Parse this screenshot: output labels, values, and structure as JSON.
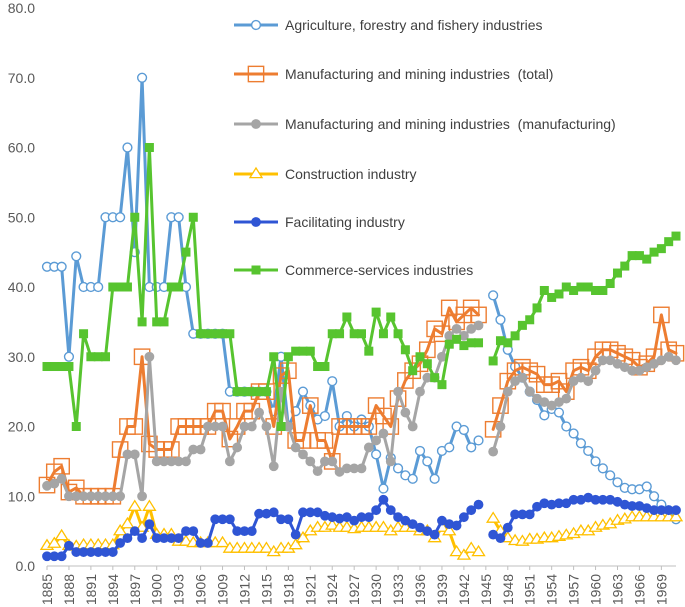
{
  "chart_data": {
    "type": "line",
    "title": "",
    "xlabel": "",
    "ylabel": "",
    "ylim": [
      0,
      80
    ],
    "yticks": [
      "0.0",
      "10.0",
      "20.0",
      "30.0",
      "40.0",
      "50.0",
      "60.0",
      "70.0",
      "80.0"
    ],
    "xlim": [
      1885,
      1971
    ],
    "xtick_labels": [
      "1885",
      "1888",
      "1891",
      "1894",
      "1897",
      "1900",
      "1903",
      "1906",
      "1909",
      "1912",
      "1915",
      "1918",
      "1921",
      "1924",
      "1927",
      "1930",
      "1933",
      "1936",
      "1939",
      "1942",
      "1945",
      "1948",
      "1951",
      "1954",
      "1957",
      "1960",
      "1963",
      "1966",
      "1969"
    ],
    "grid": false,
    "legend_position": "top-right, inside plot",
    "series": [
      {
        "name": "Agriculture, forestry and fishery industries",
        "color": "#5b9bd5",
        "marker": "open-circle",
        "x": [
          1885,
          1886,
          1887,
          1888,
          1889,
          1890,
          1891,
          1892,
          1893,
          1894,
          1895,
          1896,
          1897,
          1898,
          1899,
          1900,
          1901,
          1902,
          1903,
          1904,
          1905,
          1906,
          1907,
          1908,
          1909,
          1910,
          1911,
          1912,
          1913,
          1914,
          1915,
          1916,
          1917,
          1918,
          1919,
          1920,
          1921,
          1922,
          1923,
          1924,
          1925,
          1926,
          1927,
          1928,
          1929,
          1930,
          1931,
          1932,
          1933,
          1934,
          1935,
          1936,
          1937,
          1938,
          1939,
          1940,
          1941,
          1942,
          1943,
          1944,
          null,
          1946,
          1947,
          1948,
          1949,
          1950,
          1951,
          1952,
          1953,
          1954,
          1955,
          1956,
          1957,
          1958,
          1959,
          1960,
          1961,
          1962,
          1963,
          1964,
          1965,
          1966,
          1967,
          1968,
          1969,
          1970,
          1971
        ],
        "y": [
          42.9,
          42.9,
          42.9,
          30,
          44.4,
          40,
          40,
          40,
          50,
          50,
          50,
          60,
          45,
          70,
          40,
          40,
          40,
          50,
          50,
          40,
          33.3,
          33.3,
          33.3,
          33.3,
          33.3,
          25,
          25,
          25,
          25,
          25,
          25,
          22.2,
          30,
          20,
          22.2,
          25,
          23,
          21,
          21.5,
          26.5,
          20,
          21.5,
          20,
          21,
          20,
          16,
          11.1,
          15.5,
          14,
          13,
          12.5,
          16.5,
          15,
          12.5,
          16.5,
          17,
          20,
          19.5,
          17,
          18,
          null,
          38.8,
          35.3,
          31,
          28.6,
          27,
          25,
          23.8,
          21.6,
          22.5,
          22,
          20,
          19,
          17.6,
          16.5,
          15,
          14,
          13,
          12,
          11.2,
          11,
          11,
          11.4,
          10,
          8.8,
          8,
          6.7
        ]
      },
      {
        "name": "Manufacturing and mining industries  (total)",
        "color": "#ed7d31",
        "marker": "open-square",
        "x": [
          1885,
          1886,
          1887,
          1888,
          1889,
          1890,
          1891,
          1892,
          1893,
          1894,
          1895,
          1896,
          1897,
          1898,
          1899,
          1900,
          1901,
          1902,
          1903,
          1904,
          1905,
          1906,
          1907,
          1908,
          1909,
          1910,
          1911,
          1912,
          1913,
          1914,
          1915,
          1916,
          1917,
          1918,
          1919,
          1920,
          1921,
          1922,
          1923,
          1924,
          1925,
          1926,
          1927,
          1928,
          1929,
          1930,
          1931,
          1932,
          1933,
          1934,
          1935,
          1936,
          1937,
          1938,
          1939,
          1940,
          1941,
          1942,
          1943,
          1944,
          null,
          1946,
          1947,
          1948,
          1949,
          1950,
          1951,
          1952,
          1953,
          1954,
          1955,
          1956,
          1957,
          1958,
          1959,
          1960,
          1961,
          1962,
          1963,
          1964,
          1965,
          1966,
          1967,
          1968,
          1969,
          1970,
          1971
        ],
        "y": [
          11.6,
          13.5,
          14.3,
          10.6,
          11.2,
          10,
          10,
          10,
          10,
          10,
          16.7,
          20,
          20,
          30,
          17.5,
          16.7,
          16.7,
          16.7,
          20,
          20,
          20,
          20,
          20,
          22.2,
          22.2,
          18.2,
          20,
          22.2,
          22.2,
          25,
          25,
          20,
          27.3,
          28,
          18,
          18,
          23,
          18,
          18,
          15,
          20,
          20,
          20,
          20,
          20,
          23,
          21.5,
          20,
          24,
          26.6,
          28,
          29,
          31,
          34,
          33.3,
          37,
          35,
          36,
          37,
          36,
          null,
          19.6,
          23,
          26.5,
          28,
          28.5,
          28,
          27.5,
          26,
          26,
          26.5,
          25,
          28,
          28.5,
          28,
          30,
          31,
          31,
          30.5,
          30,
          29.5,
          28.5,
          29,
          30,
          36,
          31,
          30.5
        ]
      },
      {
        "name": "Manufacturing and mining industries  (manufacturing)",
        "color": "#a5a5a5",
        "marker": "filled-circle",
        "x": [
          1885,
          1886,
          1887,
          1888,
          1889,
          1890,
          1891,
          1892,
          1893,
          1894,
          1895,
          1896,
          1897,
          1898,
          1899,
          1900,
          1901,
          1902,
          1903,
          1904,
          1905,
          1906,
          1907,
          1908,
          1909,
          1910,
          1911,
          1912,
          1913,
          1914,
          1915,
          1916,
          1917,
          1918,
          1919,
          1920,
          1921,
          1922,
          1923,
          1924,
          1925,
          1926,
          1927,
          1928,
          1929,
          1930,
          1931,
          1932,
          1933,
          1934,
          1935,
          1936,
          1937,
          1938,
          1939,
          1940,
          1941,
          1942,
          1943,
          1944,
          null,
          1946,
          1947,
          1948,
          1949,
          1950,
          1951,
          1952,
          1953,
          1954,
          1955,
          1956,
          1957,
          1958,
          1959,
          1960,
          1961,
          1962,
          1963,
          1964,
          1965,
          1966,
          1967,
          1968,
          1969,
          1970,
          1971
        ],
        "y": [
          11.5,
          11.8,
          12.5,
          10,
          10,
          10,
          10,
          10,
          10,
          10,
          10,
          16,
          16,
          10,
          30,
          15,
          15,
          15,
          15,
          15,
          16.7,
          16.7,
          20,
          20,
          20,
          15,
          17,
          20,
          20,
          22,
          20,
          14.3,
          25,
          20,
          17,
          16,
          15,
          13.6,
          15,
          15,
          13.5,
          14,
          14,
          14,
          17,
          18,
          19,
          15,
          25,
          22,
          20,
          25,
          27,
          27,
          30,
          33,
          34,
          33,
          34,
          34.5,
          null,
          16.4,
          20,
          25,
          26.5,
          27,
          25,
          24,
          23.5,
          23,
          23.5,
          24,
          26.5,
          27,
          26.5,
          28,
          29.5,
          29.5,
          29,
          28.5,
          28,
          28,
          28.5,
          29,
          29.5,
          30,
          29.5
        ]
      },
      {
        "name": "Construction industry",
        "color": "#ffc000",
        "marker": "open-triangle",
        "x": [
          1885,
          1886,
          1887,
          1888,
          1889,
          1890,
          1891,
          1892,
          1893,
          1894,
          1895,
          1896,
          1897,
          1898,
          1899,
          1900,
          1901,
          1902,
          1903,
          1904,
          1905,
          1906,
          1907,
          1908,
          1909,
          1910,
          1911,
          1912,
          1913,
          1914,
          1915,
          1916,
          1917,
          1918,
          1919,
          1920,
          1921,
          1922,
          1923,
          1924,
          1925,
          1926,
          1927,
          1928,
          1929,
          1930,
          1931,
          1932,
          1933,
          1934,
          1935,
          1936,
          1937,
          1938,
          1939,
          1940,
          1941,
          1942,
          1943,
          1944,
          null,
          1946,
          1947,
          1948,
          1949,
          1950,
          1951,
          1952,
          1953,
          1954,
          1955,
          1956,
          1957,
          1958,
          1959,
          1960,
          1961,
          1962,
          1963,
          1964,
          1965,
          1966,
          1967,
          1968,
          1969,
          1970,
          1971
        ],
        "y": [
          2.9,
          3.2,
          4.3,
          2.9,
          2.8,
          3,
          3,
          3,
          3,
          3,
          5,
          6,
          8.5,
          5.5,
          8.5,
          4.5,
          4.5,
          4.5,
          3.5,
          3.5,
          3.3,
          3.3,
          3.3,
          3.3,
          3.3,
          2.5,
          2.5,
          2.5,
          2.5,
          2.5,
          2.5,
          2,
          2.5,
          2.5,
          3,
          4,
          5,
          5.5,
          5.5,
          5.8,
          5.5,
          5.5,
          5.3,
          5.5,
          5.5,
          5.5,
          5.5,
          5,
          5.5,
          5.5,
          5.5,
          5,
          5,
          4,
          5.5,
          5,
          2,
          1.5,
          2.5,
          2,
          null,
          6.8,
          5,
          4,
          3.6,
          3.5,
          3.8,
          3.8,
          4,
          4,
          4.2,
          4.4,
          4.6,
          5,
          5,
          5.5,
          5.8,
          6,
          6.5,
          6.7,
          7,
          7,
          7,
          7,
          7,
          7,
          7
        ]
      },
      {
        "name": "Facilitating industry",
        "color": "#2f55d4",
        "marker": "filled-circle",
        "x": [
          1885,
          1886,
          1887,
          1888,
          1889,
          1890,
          1891,
          1892,
          1893,
          1894,
          1895,
          1896,
          1897,
          1898,
          1899,
          1900,
          1901,
          1902,
          1903,
          1904,
          1905,
          1906,
          1907,
          1908,
          1909,
          1910,
          1911,
          1912,
          1913,
          1914,
          1915,
          1916,
          1917,
          1918,
          1919,
          1920,
          1921,
          1922,
          1923,
          1924,
          1925,
          1926,
          1927,
          1928,
          1929,
          1930,
          1931,
          1932,
          1933,
          1934,
          1935,
          1936,
          1937,
          1938,
          1939,
          1940,
          1941,
          1942,
          1943,
          1944,
          null,
          1946,
          1947,
          1948,
          1949,
          1950,
          1951,
          1952,
          1953,
          1954,
          1955,
          1956,
          1957,
          1958,
          1959,
          1960,
          1961,
          1962,
          1963,
          1964,
          1965,
          1966,
          1967,
          1968,
          1969,
          1970,
          1971
        ],
        "y": [
          1.4,
          1.4,
          1.4,
          2.9,
          2,
          2,
          2,
          2,
          2,
          2,
          3.3,
          4,
          5,
          4,
          6,
          4,
          4,
          4,
          4,
          5,
          5,
          3.3,
          3.3,
          6.7,
          6.7,
          6.7,
          5,
          5,
          5,
          7.5,
          7.5,
          7.7,
          6.7,
          6.7,
          4.5,
          7.7,
          7.7,
          7.7,
          7.2,
          7,
          6.8,
          7,
          6.5,
          7,
          7,
          8,
          9.5,
          8,
          7,
          6.5,
          6,
          5.5,
          5,
          4.5,
          6.5,
          6,
          5.8,
          7,
          8,
          8.8,
          null,
          4.5,
          4,
          5.5,
          7.4,
          7.4,
          7.4,
          8.5,
          9,
          8.8,
          9,
          9,
          9.5,
          9.5,
          9.8,
          9.5,
          9.5,
          9.5,
          9.2,
          8.8,
          8.6,
          8.6,
          8.3,
          8,
          8,
          8,
          8
        ]
      },
      {
        "name": "Commerce-services industries",
        "color": "#57c42f",
        "marker": "filled-square",
        "x": [
          1885,
          1886,
          1887,
          1888,
          1889,
          1890,
          1891,
          1892,
          1893,
          1894,
          1895,
          1896,
          1897,
          1898,
          1899,
          1900,
          1901,
          1902,
          1903,
          1904,
          1905,
          1906,
          1907,
          1908,
          1909,
          1910,
          1911,
          1912,
          1913,
          1914,
          1915,
          1916,
          1917,
          1918,
          1919,
          1920,
          1921,
          1922,
          1923,
          1924,
          1925,
          1926,
          1927,
          1928,
          1929,
          1930,
          1931,
          1932,
          1933,
          1934,
          1935,
          1936,
          1937,
          1938,
          1939,
          1940,
          1941,
          1942,
          1943,
          1944,
          null,
          1946,
          1947,
          1948,
          1949,
          1950,
          1951,
          1952,
          1953,
          1954,
          1955,
          1956,
          1957,
          1958,
          1959,
          1960,
          1961,
          1962,
          1963,
          1964,
          1965,
          1966,
          1967,
          1968,
          1969,
          1970,
          1971
        ],
        "y": [
          28.6,
          28.6,
          28.6,
          28.6,
          20,
          33.3,
          30,
          30,
          30,
          40,
          40,
          40,
          50,
          35,
          60,
          35,
          35,
          40,
          40,
          45,
          50,
          33.3,
          33.3,
          33.3,
          33.3,
          33.3,
          25,
          25,
          25,
          25,
          25,
          30,
          20,
          30,
          30.8,
          30.8,
          30.8,
          28.6,
          28.6,
          33.3,
          33.3,
          35.7,
          33.3,
          33.3,
          30.8,
          36.4,
          33.3,
          35.7,
          33.3,
          31,
          28,
          30,
          29,
          27,
          26,
          31.8,
          32.5,
          31.6,
          32,
          32,
          null,
          29.4,
          32.3,
          32,
          33,
          34.5,
          35.3,
          37,
          39.5,
          38.5,
          39,
          40,
          39.5,
          40,
          40,
          39.5,
          39.5,
          40.5,
          42,
          43,
          44.5,
          44.5,
          44,
          45,
          45.5,
          46.5,
          47.3
        ]
      }
    ]
  }
}
